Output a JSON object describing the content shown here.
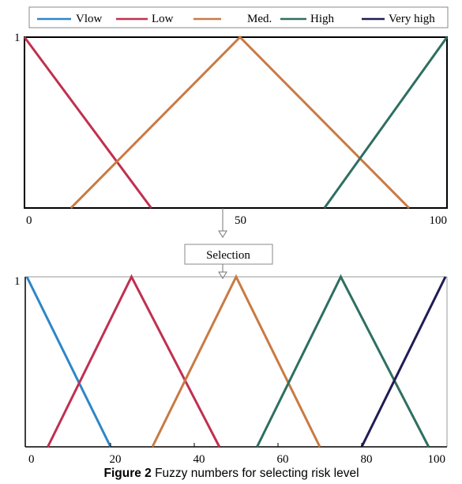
{
  "colors": {
    "vlow": "#2e86c8",
    "low": "#c0304f",
    "med": "#c97a43",
    "high": "#2e6f61",
    "very_high": "#1f1c55",
    "axis": "#000000",
    "connector": "#777777"
  },
  "legend": [
    "Vlow",
    "Low",
    "Med.",
    "High",
    "Very high"
  ],
  "selection_label": "Selection",
  "caption": {
    "label": "Figure 2",
    "text": " Fuzzy numbers for selecting risk level"
  },
  "chart_data": [
    {
      "type": "line",
      "title": "",
      "xlabel": "",
      "ylabel": "",
      "xlim": [
        0,
        100
      ],
      "ylim": [
        0,
        1
      ],
      "x_ticks": [
        0,
        50,
        100
      ],
      "y_tick_label": "1",
      "grid": false,
      "legend_position": "top",
      "series": [
        {
          "name": "Low",
          "color_key": "low",
          "x": [
            0,
            30
          ],
          "y": [
            1,
            0
          ]
        },
        {
          "name": "Med.",
          "color_key": "med",
          "x": [
            11,
            51,
            91
          ],
          "y": [
            0,
            1,
            0
          ]
        },
        {
          "name": "High",
          "color_key": "high",
          "x": [
            71,
            100
          ],
          "y": [
            0,
            1
          ]
        }
      ]
    },
    {
      "type": "line",
      "title": "",
      "xlabel": "",
      "ylabel": "",
      "xlim": [
        0,
        100
      ],
      "ylim": [
        0,
        1
      ],
      "x_ticks": [
        0,
        20,
        40,
        60,
        80,
        100
      ],
      "y_tick_label": "1",
      "grid": false,
      "legend_position": "none",
      "series": [
        {
          "name": "Vlow",
          "color_key": "vlow",
          "x": [
            0,
            20
          ],
          "y": [
            1,
            0
          ]
        },
        {
          "name": "Low",
          "color_key": "low",
          "x": [
            5,
            25,
            46
          ],
          "y": [
            0,
            1,
            0
          ]
        },
        {
          "name": "Med.",
          "color_key": "med",
          "x": [
            30,
            50,
            70
          ],
          "y": [
            0,
            1,
            0
          ]
        },
        {
          "name": "High",
          "color_key": "high",
          "x": [
            55,
            75,
            96
          ],
          "y": [
            0,
            1,
            0
          ]
        },
        {
          "name": "Very high",
          "color_key": "very_high",
          "x": [
            80,
            100
          ],
          "y": [
            0,
            1
          ]
        }
      ]
    }
  ]
}
